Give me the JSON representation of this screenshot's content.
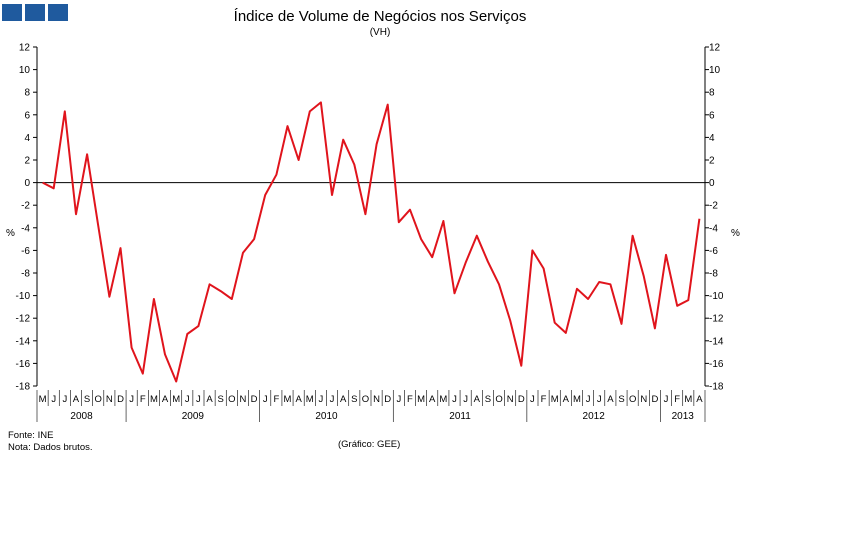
{
  "header": {
    "title": "Índice de Volume de Negócios nos Serviços",
    "subtitle": "(VH)",
    "logo_color": "#1f5a9e"
  },
  "footer": {
    "source": "Fonte: INE",
    "note": "Nota: Dados brutos.",
    "credit": "(Gráfico: GEE)"
  },
  "chart_data": {
    "type": "line",
    "title": "Índice de Volume de Negócios nos Serviços",
    "subtitle": "(VH)",
    "ylabel": "%",
    "ylabel_right": "%",
    "ylim": [
      -18,
      12
    ],
    "yticks": [
      12,
      10,
      8,
      6,
      4,
      2,
      0,
      -2,
      -4,
      -6,
      -8,
      -10,
      -12,
      -14,
      -16,
      -18
    ],
    "grid": false,
    "line_color": "#e0141c",
    "x": [
      "M",
      "J",
      "J",
      "A",
      "S",
      "O",
      "N",
      "D",
      "J",
      "F",
      "M",
      "A",
      "M",
      "J",
      "J",
      "A",
      "S",
      "O",
      "N",
      "D",
      "J",
      "F",
      "M",
      "A",
      "M",
      "J",
      "J",
      "A",
      "S",
      "O",
      "N",
      "D",
      "J",
      "F",
      "M",
      "A",
      "M",
      "J",
      "J",
      "A",
      "S",
      "O",
      "N",
      "D",
      "J",
      "F",
      "M",
      "A",
      "M",
      "J",
      "J",
      "A",
      "S",
      "O",
      "N",
      "D",
      "J",
      "F",
      "M",
      "A"
    ],
    "years": [
      {
        "label": "2008",
        "start": 0,
        "end": 8
      },
      {
        "label": "2009",
        "start": 8,
        "end": 20
      },
      {
        "label": "2010",
        "start": 20,
        "end": 32
      },
      {
        "label": "2011",
        "start": 32,
        "end": 44
      },
      {
        "label": "2012",
        "start": 44,
        "end": 56
      },
      {
        "label": "2013",
        "start": 56,
        "end": 60
      }
    ],
    "series": [
      {
        "name": "",
        "values": [
          0.0,
          -0.5,
          6.3,
          -2.8,
          2.5,
          -3.8,
          -10.1,
          -5.8,
          -14.6,
          -16.9,
          -10.3,
          -15.2,
          -17.6,
          -13.4,
          -12.7,
          -9.0,
          -9.6,
          -10.3,
          -6.2,
          -5.0,
          -1.1,
          0.7,
          5.0,
          2.0,
          6.3,
          7.1,
          -1.1,
          3.8,
          1.6,
          -2.8,
          3.4,
          6.9,
          -3.5,
          -2.4,
          -5.0,
          -6.6,
          -3.4,
          -9.8,
          -7.1,
          -4.7,
          -7.0,
          -9.0,
          -12.2,
          -16.2,
          -6.0,
          -7.6,
          -12.4,
          -13.3,
          -9.4,
          -10.3,
          -8.8,
          -9.0,
          -12.5,
          -4.7,
          -8.3,
          -12.9,
          -6.4,
          -10.9,
          -10.4,
          -3.2
        ]
      }
    ]
  }
}
